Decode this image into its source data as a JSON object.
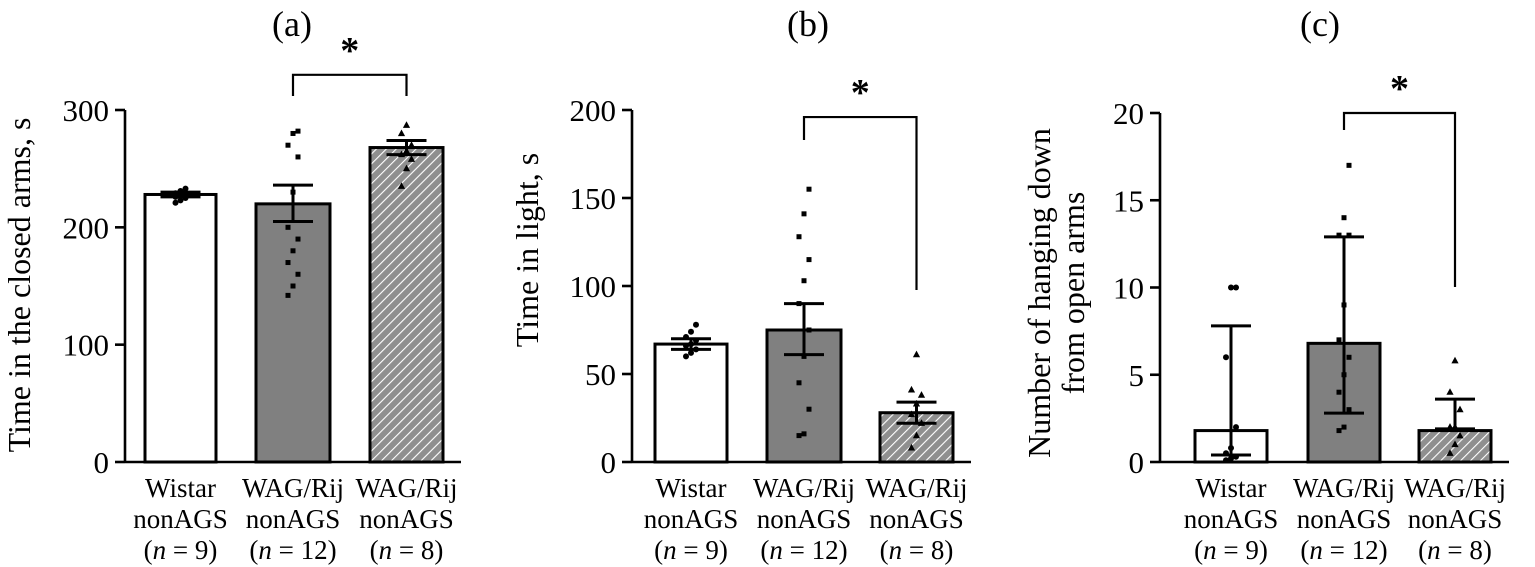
{
  "chart_data": [
    {
      "type": "bar",
      "title": "(a)",
      "ylabel": "Time in the closed arms, s",
      "ylim": [
        0,
        300
      ],
      "yticks": [
        0,
        100,
        200,
        300
      ],
      "categories": [
        {
          "lines": [
            "Wistar",
            "nonAGS"
          ],
          "n": "9"
        },
        {
          "lines": [
            "WAG/Rij",
            "nonAGS"
          ],
          "n": "12"
        },
        {
          "lines": [
            "WAG/Rij",
            "nonAGS"
          ],
          "n": "8"
        }
      ],
      "fills": [
        "white",
        "gray",
        "hatch"
      ],
      "values": [
        228,
        220,
        268
      ],
      "error": [
        [
          226,
          230
        ],
        [
          205,
          236
        ],
        [
          262,
          274
        ]
      ],
      "points": [
        [
          221,
          223,
          225,
          226,
          227,
          228,
          229,
          231,
          233
        ],
        [
          142,
          150,
          160,
          170,
          180,
          190,
          200,
          230,
          260,
          270,
          280,
          282
        ],
        [
          235,
          250,
          258,
          262,
          265,
          270,
          280,
          287
        ]
      ],
      "significance": {
        "from": 1,
        "to": 2,
        "label": "*",
        "y": 330
      }
    },
    {
      "type": "bar",
      "title": "(b)",
      "ylabel": "Time in light, s",
      "ylim": [
        0,
        200
      ],
      "yticks": [
        0,
        50,
        100,
        150,
        200
      ],
      "categories": [
        {
          "lines": [
            "Wistar",
            "nonAGS"
          ],
          "n": "9"
        },
        {
          "lines": [
            "WAG/Rij",
            "nonAGS"
          ],
          "n": "12"
        },
        {
          "lines": [
            "WAG/Rij",
            "nonAGS"
          ],
          "n": "8"
        }
      ],
      "fills": [
        "white",
        "gray",
        "hatch"
      ],
      "values": [
        67,
        75,
        28
      ],
      "error": [
        [
          64,
          70
        ],
        [
          61,
          90
        ],
        [
          22,
          34
        ]
      ],
      "points": [
        [
          60,
          62,
          64,
          66,
          67,
          69,
          71,
          74,
          78
        ],
        [
          15,
          16,
          30,
          45,
          60,
          75,
          90,
          103,
          115,
          128,
          141,
          155
        ],
        [
          8,
          15,
          22,
          27,
          33,
          38,
          41,
          61
        ]
      ],
      "significance": {
        "from": 1,
        "to": 2,
        "label": "*",
        "y": 196
      }
    },
    {
      "type": "bar",
      "title": "(c)",
      "ylabel": "Number of hanging down from open arms",
      "ylim": [
        0,
        20
      ],
      "yticks": [
        0,
        5,
        10,
        15,
        20
      ],
      "categories": [
        {
          "lines": [
            "Wistar",
            "nonAGS"
          ],
          "n": "9"
        },
        {
          "lines": [
            "WAG/Rij",
            "nonAGS"
          ],
          "n": "12"
        },
        {
          "lines": [
            "WAG/Rij",
            "nonAGS"
          ],
          "n": "8"
        }
      ],
      "fills": [
        "white",
        "gray",
        "hatch"
      ],
      "values": [
        1.8,
        6.8,
        1.8
      ],
      "error": [
        [
          0.4,
          7.8
        ],
        [
          2.8,
          12.9
        ],
        [
          1.9,
          3.6
        ]
      ],
      "points": [
        [
          0.1,
          0.2,
          0.3,
          0.5,
          0.8,
          2.0,
          6.0,
          10.0,
          10.0
        ],
        [
          1.8,
          2.0,
          3.0,
          4.0,
          5.0,
          6.0,
          7.0,
          9.0,
          13.0,
          13.0,
          14.0,
          17.0
        ],
        [
          0.5,
          1.0,
          1.5,
          2.0,
          2.0,
          3.0,
          4.0,
          5.8
        ]
      ],
      "significance": {
        "from": 1,
        "to": 2,
        "label": "*",
        "y": 20
      }
    }
  ]
}
